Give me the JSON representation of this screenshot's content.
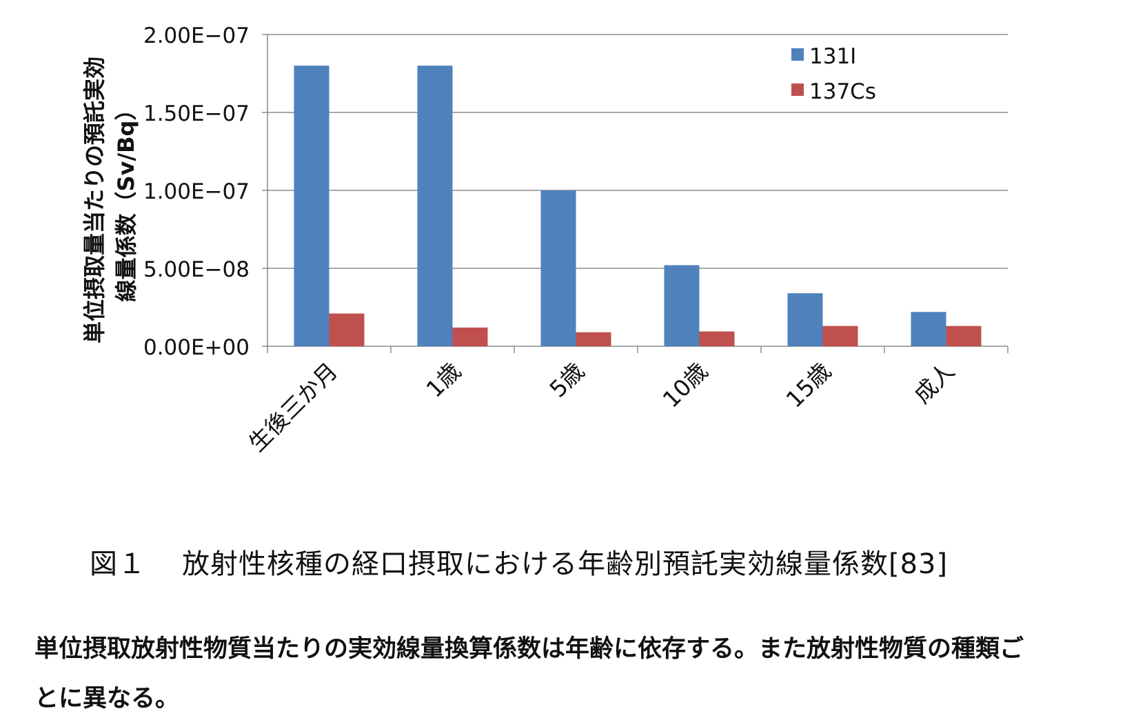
{
  "chart_data": {
    "type": "bar",
    "title": "",
    "ylabel_lines": [
      "単位摂取量当たりの預託実効",
      "線量係数（Sv/Bq）"
    ],
    "ylim": [
      0,
      2e-07
    ],
    "yticks": [
      "0.00E+00",
      "5.00E−08",
      "1.00E−07",
      "1.50E−07",
      "2.00E−07"
    ],
    "ytick_values": [
      0,
      5e-08,
      1e-07,
      1.5e-07,
      2e-07
    ],
    "grid": true,
    "legend_position": "top-right",
    "categories": [
      "生後三か月",
      "1歳",
      "5歳",
      "10歳",
      "15歳",
      "成人"
    ],
    "series": [
      {
        "name": "131I",
        "color": "#4f81bd",
        "values": [
          1.8e-07,
          1.8e-07,
          1e-07,
          5.2e-08,
          3.4e-08,
          2.2e-08
        ]
      },
      {
        "name": "137Cs",
        "color": "#c0504d",
        "values": [
          2.1e-08,
          1.2e-08,
          9e-09,
          9.5e-09,
          1.3e-08,
          1.3e-08
        ]
      }
    ]
  },
  "caption": {
    "figure_label": "図１",
    "text": "放射性核種の経口摂取における年齢別預託実効線量係数[83]"
  },
  "body_text": {
    "line1": "単位摂取放射性物質当たりの実効線量換算係数は年齢に依存する。また放射性物質の種類ご",
    "line2": "とに異なる。"
  }
}
